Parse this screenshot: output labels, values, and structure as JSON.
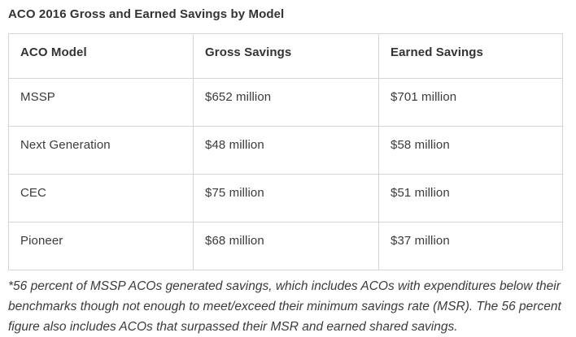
{
  "title": "ACO 2016 Gross and Earned Savings by Model",
  "table": {
    "columns": {
      "model": "ACO Model",
      "gross": "Gross Savings",
      "earned": "Earned Savings"
    },
    "rows": [
      {
        "model": "MSSP",
        "gross": "$652 million",
        "earned": "$701 million"
      },
      {
        "model": "Next Generation",
        "gross": "$48 million",
        "earned": "$58 million"
      },
      {
        "model": "CEC",
        "gross": "$75 million",
        "earned": "$51 million"
      },
      {
        "model": "Pioneer",
        "gross": "$68 million",
        "earned": "$37 million"
      }
    ]
  },
  "footnote": "*56 percent of MSSP ACOs generated savings, which includes ACOs with expenditures below their benchmarks though not enough to meet/exceed their minimum savings rate (MSR). The 56 percent figure also includes ACOs that surpassed their MSR and earned shared savings.",
  "colors": {
    "background": "#ffffff",
    "text": "#3b3b3b",
    "heading_text": "#333333",
    "table_border": "#d5d5d5"
  },
  "chart_data": {
    "type": "table",
    "title": "ACO 2016 Gross and Earned Savings by Model",
    "columns": [
      "ACO Model",
      "Gross Savings",
      "Earned Savings"
    ],
    "rows": [
      [
        "MSSP",
        "$652 million",
        "$701 million"
      ],
      [
        "Next Generation",
        "$48 million",
        "$58 million"
      ],
      [
        "CEC",
        "$75 million",
        "$51 million"
      ],
      [
        "Pioneer",
        "$68 million",
        "$37 million"
      ]
    ],
    "categories": [
      "MSSP",
      "Next Generation",
      "CEC",
      "Pioneer"
    ],
    "series": [
      {
        "name": "Gross Savings",
        "unit": "USD millions",
        "values": [
          652,
          48,
          75,
          68
        ]
      },
      {
        "name": "Earned Savings",
        "unit": "USD millions",
        "values": [
          701,
          58,
          51,
          37
        ]
      }
    ],
    "footnote": "*56 percent of MSSP ACOs generated savings, which includes ACOs with expenditures below their benchmarks though not enough to meet/exceed their minimum savings rate (MSR). The 56 percent figure also includes ACOs that surpassed their MSR and earned shared savings."
  }
}
